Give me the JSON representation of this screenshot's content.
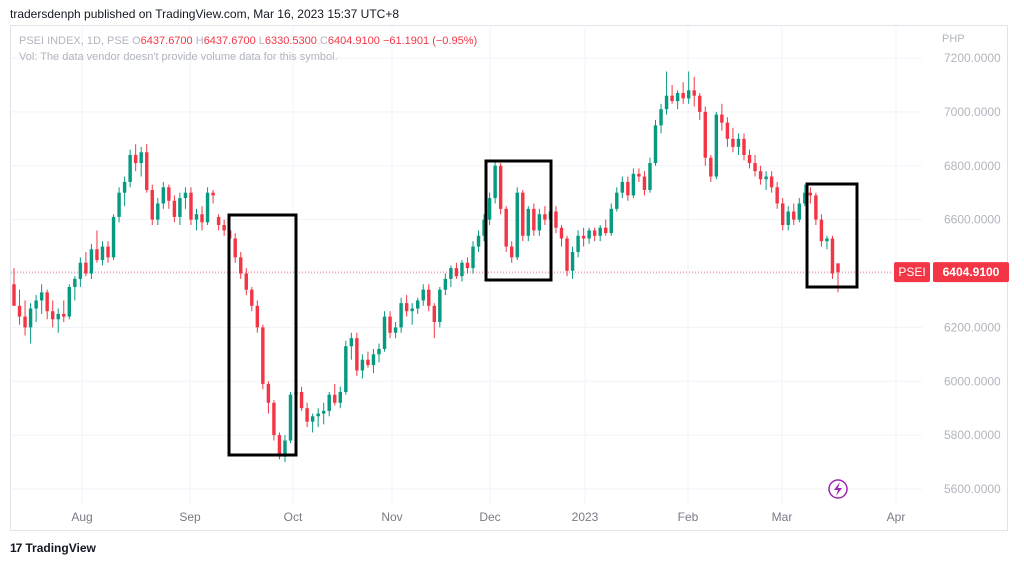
{
  "header": {
    "published": "tradersdenph published on TradingView.com, Mar 16, 2023 15:37 UTC+8"
  },
  "legend": {
    "symbol": "PSEI INDEX, 1D, PSE",
    "open_label": "O",
    "open": "6437.6700",
    "high_label": "H",
    "high": "6437.6700",
    "low_label": "L",
    "low": "6330.5300",
    "close_label": "C",
    "close": "6404.9100",
    "change": "−61.1901 (−0.95%)",
    "volume_note": "Vol: The data vendor doesn't provide volume data for this symbol."
  },
  "currency": "PHP",
  "price_tag": {
    "symbol": "PSEI",
    "value": "6404.9100"
  },
  "footer": {
    "brand": "TradingView",
    "logo": "17"
  },
  "colors": {
    "up": "#089981",
    "down": "#f23645",
    "grid": "#f0f3fa",
    "axis_text": "#b2b5be",
    "box": "#000000",
    "accent_icon": "#9c27b0"
  },
  "icons": {
    "flash": "lightning-icon"
  },
  "chart_data": {
    "type": "candlestick",
    "ylim": [
      5550,
      7290
    ],
    "y_ticks": [
      "5600.0000",
      "5800.0000",
      "6000.0000",
      "6200.0000",
      "6400.0000",
      "6600.0000",
      "6800.0000",
      "7000.0000",
      "7200.0000"
    ],
    "x_ticks": [
      "Aug",
      "Sep",
      "Oct",
      "Nov",
      "Dec",
      "2023",
      "Feb",
      "Mar",
      "Apr"
    ],
    "last_price": 6404.91,
    "candles": [
      {
        "o": 6360,
        "h": 6420,
        "l": 6290,
        "c": 6280
      },
      {
        "o": 6280,
        "h": 6340,
        "l": 6210,
        "c": 6240
      },
      {
        "o": 6240,
        "h": 6300,
        "l": 6170,
        "c": 6200
      },
      {
        "o": 6200,
        "h": 6290,
        "l": 6140,
        "c": 6270
      },
      {
        "o": 6270,
        "h": 6320,
        "l": 6220,
        "c": 6300
      },
      {
        "o": 6300,
        "h": 6360,
        "l": 6250,
        "c": 6330
      },
      {
        "o": 6330,
        "h": 6340,
        "l": 6230,
        "c": 6260
      },
      {
        "o": 6260,
        "h": 6300,
        "l": 6200,
        "c": 6230
      },
      {
        "o": 6230,
        "h": 6270,
        "l": 6180,
        "c": 6250
      },
      {
        "o": 6250,
        "h": 6300,
        "l": 6220,
        "c": 6240
      },
      {
        "o": 6240,
        "h": 6360,
        "l": 6230,
        "c": 6350
      },
      {
        "o": 6350,
        "h": 6390,
        "l": 6300,
        "c": 6380
      },
      {
        "o": 6380,
        "h": 6460,
        "l": 6350,
        "c": 6440
      },
      {
        "o": 6440,
        "h": 6480,
        "l": 6390,
        "c": 6400
      },
      {
        "o": 6400,
        "h": 6510,
        "l": 6380,
        "c": 6490
      },
      {
        "o": 6490,
        "h": 6560,
        "l": 6440,
        "c": 6450
      },
      {
        "o": 6450,
        "h": 6520,
        "l": 6430,
        "c": 6500
      },
      {
        "o": 6500,
        "h": 6520,
        "l": 6440,
        "c": 6460
      },
      {
        "o": 6460,
        "h": 6620,
        "l": 6450,
        "c": 6610
      },
      {
        "o": 6610,
        "h": 6720,
        "l": 6590,
        "c": 6700
      },
      {
        "o": 6700,
        "h": 6760,
        "l": 6650,
        "c": 6740
      },
      {
        "o": 6740,
        "h": 6860,
        "l": 6720,
        "c": 6840
      },
      {
        "o": 6840,
        "h": 6880,
        "l": 6780,
        "c": 6810
      },
      {
        "o": 6810,
        "h": 6870,
        "l": 6760,
        "c": 6850
      },
      {
        "o": 6850,
        "h": 6880,
        "l": 6700,
        "c": 6710
      },
      {
        "o": 6710,
        "h": 6730,
        "l": 6580,
        "c": 6600
      },
      {
        "o": 6600,
        "h": 6680,
        "l": 6580,
        "c": 6660
      },
      {
        "o": 6660,
        "h": 6740,
        "l": 6640,
        "c": 6720
      },
      {
        "o": 6720,
        "h": 6730,
        "l": 6640,
        "c": 6670
      },
      {
        "o": 6670,
        "h": 6690,
        "l": 6590,
        "c": 6610
      },
      {
        "o": 6610,
        "h": 6700,
        "l": 6580,
        "c": 6680
      },
      {
        "o": 6680,
        "h": 6720,
        "l": 6640,
        "c": 6700
      },
      {
        "o": 6700,
        "h": 6720,
        "l": 6580,
        "c": 6600
      },
      {
        "o": 6600,
        "h": 6640,
        "l": 6560,
        "c": 6620
      },
      {
        "o": 6620,
        "h": 6650,
        "l": 6560,
        "c": 6590
      },
      {
        "o": 6590,
        "h": 6720,
        "l": 6580,
        "c": 6700
      },
      {
        "o": 6700,
        "h": 6710,
        "l": 6660,
        "c": 6690
      },
      {
        "o": 6610,
        "h": 6620,
        "l": 6560,
        "c": 6580
      },
      {
        "o": 6580,
        "h": 6600,
        "l": 6540,
        "c": 6560
      },
      {
        "o": 6560,
        "h": 6580,
        "l": 6520,
        "c": 6530
      },
      {
        "o": 6530,
        "h": 6550,
        "l": 6440,
        "c": 6460
      },
      {
        "o": 6460,
        "h": 6480,
        "l": 6380,
        "c": 6400
      },
      {
        "o": 6400,
        "h": 6420,
        "l": 6320,
        "c": 6340
      },
      {
        "o": 6340,
        "h": 6350,
        "l": 6260,
        "c": 6280
      },
      {
        "o": 6280,
        "h": 6300,
        "l": 6180,
        "c": 6200
      },
      {
        "o": 6200,
        "h": 6210,
        "l": 5970,
        "c": 5990
      },
      {
        "o": 5990,
        "h": 6000,
        "l": 5880,
        "c": 5920
      },
      {
        "o": 5920,
        "h": 5930,
        "l": 5780,
        "c": 5800
      },
      {
        "o": 5800,
        "h": 5810,
        "l": 5710,
        "c": 5720
      },
      {
        "o": 5720,
        "h": 5800,
        "l": 5700,
        "c": 5780
      },
      {
        "o": 5780,
        "h": 5960,
        "l": 5770,
        "c": 5950
      },
      {
        "o": 5950,
        "h": 5990,
        "l": 5900,
        "c": 5960
      },
      {
        "o": 5960,
        "h": 5980,
        "l": 5890,
        "c": 5900
      },
      {
        "o": 5900,
        "h": 5920,
        "l": 5830,
        "c": 5850
      },
      {
        "o": 5850,
        "h": 5880,
        "l": 5810,
        "c": 5870
      },
      {
        "o": 5870,
        "h": 5900,
        "l": 5830,
        "c": 5880
      },
      {
        "o": 5880,
        "h": 5920,
        "l": 5840,
        "c": 5890
      },
      {
        "o": 5890,
        "h": 5960,
        "l": 5870,
        "c": 5950
      },
      {
        "o": 5950,
        "h": 5990,
        "l": 5910,
        "c": 5920
      },
      {
        "o": 5920,
        "h": 5980,
        "l": 5900,
        "c": 5960
      },
      {
        "o": 5960,
        "h": 6150,
        "l": 5950,
        "c": 6130
      },
      {
        "o": 6130,
        "h": 6180,
        "l": 6080,
        "c": 6160
      },
      {
        "o": 6160,
        "h": 6180,
        "l": 6020,
        "c": 6040
      },
      {
        "o": 6040,
        "h": 6100,
        "l": 6010,
        "c": 6080
      },
      {
        "o": 6080,
        "h": 6110,
        "l": 6050,
        "c": 6060
      },
      {
        "o": 6060,
        "h": 6120,
        "l": 6030,
        "c": 6100
      },
      {
        "o": 6100,
        "h": 6140,
        "l": 6070,
        "c": 6120
      },
      {
        "o": 6120,
        "h": 6260,
        "l": 6110,
        "c": 6240
      },
      {
        "o": 6240,
        "h": 6260,
        "l": 6160,
        "c": 6180
      },
      {
        "o": 6180,
        "h": 6220,
        "l": 6160,
        "c": 6200
      },
      {
        "o": 6200,
        "h": 6310,
        "l": 6180,
        "c": 6290
      },
      {
        "o": 6290,
        "h": 6320,
        "l": 6240,
        "c": 6260
      },
      {
        "o": 6260,
        "h": 6290,
        "l": 6210,
        "c": 6270
      },
      {
        "o": 6270,
        "h": 6310,
        "l": 6250,
        "c": 6300
      },
      {
        "o": 6300,
        "h": 6360,
        "l": 6280,
        "c": 6340
      },
      {
        "o": 6340,
        "h": 6360,
        "l": 6260,
        "c": 6280
      },
      {
        "o": 6280,
        "h": 6290,
        "l": 6160,
        "c": 6220
      },
      {
        "o": 6220,
        "h": 6350,
        "l": 6200,
        "c": 6340
      },
      {
        "o": 6340,
        "h": 6400,
        "l": 6320,
        "c": 6380
      },
      {
        "o": 6380,
        "h": 6430,
        "l": 6350,
        "c": 6420
      },
      {
        "o": 6420,
        "h": 6440,
        "l": 6380,
        "c": 6390
      },
      {
        "o": 6390,
        "h": 6450,
        "l": 6370,
        "c": 6440
      },
      {
        "o": 6440,
        "h": 6460,
        "l": 6400,
        "c": 6420
      },
      {
        "o": 6420,
        "h": 6520,
        "l": 6400,
        "c": 6500
      },
      {
        "o": 6500,
        "h": 6560,
        "l": 6480,
        "c": 6540
      },
      {
        "o": 6540,
        "h": 6620,
        "l": 6520,
        "c": 6600
      },
      {
        "o": 6600,
        "h": 6700,
        "l": 6580,
        "c": 6680
      },
      {
        "o": 6680,
        "h": 6820,
        "l": 6660,
        "c": 6800
      },
      {
        "o": 6800,
        "h": 6810,
        "l": 6620,
        "c": 6640
      },
      {
        "o": 6640,
        "h": 6650,
        "l": 6480,
        "c": 6500
      },
      {
        "o": 6500,
        "h": 6520,
        "l": 6440,
        "c": 6460
      },
      {
        "o": 6460,
        "h": 6720,
        "l": 6450,
        "c": 6700
      },
      {
        "o": 6700,
        "h": 6710,
        "l": 6520,
        "c": 6540
      },
      {
        "o": 6540,
        "h": 6650,
        "l": 6520,
        "c": 6640
      },
      {
        "o": 6640,
        "h": 6660,
        "l": 6540,
        "c": 6560
      },
      {
        "o": 6560,
        "h": 6640,
        "l": 6540,
        "c": 6620
      },
      {
        "o": 6620,
        "h": 6650,
        "l": 6580,
        "c": 6600
      },
      {
        "o": 6600,
        "h": 6640,
        "l": 6560,
        "c": 6630
      },
      {
        "o": 6630,
        "h": 6650,
        "l": 6550,
        "c": 6570
      },
      {
        "o": 6570,
        "h": 6580,
        "l": 6500,
        "c": 6530
      },
      {
        "o": 6530,
        "h": 6540,
        "l": 6390,
        "c": 6410
      },
      {
        "o": 6410,
        "h": 6500,
        "l": 6380,
        "c": 6480
      },
      {
        "o": 6480,
        "h": 6560,
        "l": 6460,
        "c": 6540
      },
      {
        "o": 6540,
        "h": 6570,
        "l": 6500,
        "c": 6530
      },
      {
        "o": 6530,
        "h": 6570,
        "l": 6510,
        "c": 6560
      },
      {
        "o": 6560,
        "h": 6570,
        "l": 6520,
        "c": 6540
      },
      {
        "o": 6540,
        "h": 6580,
        "l": 6520,
        "c": 6570
      },
      {
        "o": 6570,
        "h": 6600,
        "l": 6540,
        "c": 6550
      },
      {
        "o": 6550,
        "h": 6660,
        "l": 6540,
        "c": 6640
      },
      {
        "o": 6640,
        "h": 6720,
        "l": 6630,
        "c": 6700
      },
      {
        "o": 6700,
        "h": 6760,
        "l": 6680,
        "c": 6740
      },
      {
        "o": 6740,
        "h": 6760,
        "l": 6670,
        "c": 6690
      },
      {
        "o": 6690,
        "h": 6790,
        "l": 6680,
        "c": 6770
      },
      {
        "o": 6770,
        "h": 6790,
        "l": 6740,
        "c": 6760
      },
      {
        "o": 6760,
        "h": 6780,
        "l": 6690,
        "c": 6710
      },
      {
        "o": 6710,
        "h": 6830,
        "l": 6700,
        "c": 6810
      },
      {
        "o": 6810,
        "h": 6970,
        "l": 6800,
        "c": 6950
      },
      {
        "o": 6950,
        "h": 7030,
        "l": 6920,
        "c": 7010
      },
      {
        "o": 7010,
        "h": 7150,
        "l": 6990,
        "c": 7060
      },
      {
        "o": 7060,
        "h": 7100,
        "l": 7030,
        "c": 7040
      },
      {
        "o": 7040,
        "h": 7080,
        "l": 7010,
        "c": 7070
      },
      {
        "o": 7070,
        "h": 7110,
        "l": 7030,
        "c": 7050
      },
      {
        "o": 7050,
        "h": 7150,
        "l": 7030,
        "c": 7080
      },
      {
        "o": 7080,
        "h": 7130,
        "l": 7020,
        "c": 7060
      },
      {
        "o": 7060,
        "h": 7070,
        "l": 6970,
        "c": 7000
      },
      {
        "o": 7000,
        "h": 7020,
        "l": 6800,
        "c": 6830
      },
      {
        "o": 6830,
        "h": 6840,
        "l": 6740,
        "c": 6760
      },
      {
        "o": 6760,
        "h": 7000,
        "l": 6750,
        "c": 6990
      },
      {
        "o": 6990,
        "h": 7030,
        "l": 6930,
        "c": 6960
      },
      {
        "o": 6960,
        "h": 6980,
        "l": 6870,
        "c": 6900
      },
      {
        "o": 6900,
        "h": 6940,
        "l": 6850,
        "c": 6870
      },
      {
        "o": 6870,
        "h": 6920,
        "l": 6840,
        "c": 6900
      },
      {
        "o": 6900,
        "h": 6920,
        "l": 6820,
        "c": 6840
      },
      {
        "o": 6840,
        "h": 6860,
        "l": 6790,
        "c": 6810
      },
      {
        "o": 6810,
        "h": 6840,
        "l": 6760,
        "c": 6780
      },
      {
        "o": 6780,
        "h": 6800,
        "l": 6730,
        "c": 6750
      },
      {
        "o": 6750,
        "h": 6780,
        "l": 6710,
        "c": 6760
      },
      {
        "o": 6760,
        "h": 6780,
        "l": 6700,
        "c": 6720
      },
      {
        "o": 6720,
        "h": 6740,
        "l": 6640,
        "c": 6660
      },
      {
        "o": 6660,
        "h": 6680,
        "l": 6560,
        "c": 6580
      },
      {
        "o": 6580,
        "h": 6650,
        "l": 6560,
        "c": 6630
      },
      {
        "o": 6630,
        "h": 6660,
        "l": 6580,
        "c": 6600
      },
      {
        "o": 6600,
        "h": 6680,
        "l": 6590,
        "c": 6660
      },
      {
        "o": 6660,
        "h": 6730,
        "l": 6650,
        "c": 6700
      },
      {
        "o": 6700,
        "h": 6720,
        "l": 6660,
        "c": 6690
      },
      {
        "o": 6690,
        "h": 6700,
        "l": 6580,
        "c": 6600
      },
      {
        "o": 6600,
        "h": 6620,
        "l": 6500,
        "c": 6520
      },
      {
        "o": 6520,
        "h": 6540,
        "l": 6490,
        "c": 6530
      },
      {
        "o": 6530,
        "h": 6540,
        "l": 6380,
        "c": 6400
      },
      {
        "o": 6437.67,
        "h": 6437.67,
        "l": 6330.53,
        "c": 6404.91
      }
    ]
  }
}
